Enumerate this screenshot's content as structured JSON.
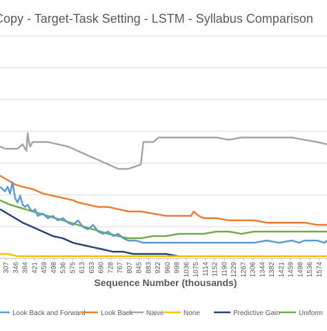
{
  "chart_data": {
    "type": "line",
    "title": "Copy - Target-Task Setting - LSTM - Syllabus Comparison",
    "xlabel": "Sequence Number (thousands)",
    "ylabel": "",
    "x_tick_labels": [
      "307",
      "346",
      "384",
      "421",
      "459",
      "498",
      "536",
      "575",
      "613",
      "653",
      "690",
      "728",
      "767",
      "807",
      "845",
      "883",
      "922",
      "960",
      "998",
      "1036",
      "1075",
      "1114",
      "1152",
      "1190",
      "1229",
      "1267",
      "1306",
      "1344",
      "1382",
      "1421",
      "1459",
      "1498",
      "1536",
      "1574"
    ],
    "x_range": [
      290,
      1590
    ],
    "y_range": [
      0,
      1
    ],
    "grid": "horizontal",
    "legend_position": "bottom",
    "series": [
      {
        "name": "Look Back and Forward",
        "color": "#5b9bd5",
        "x": [
          290,
          300,
          310,
          320,
          330,
          340,
          350,
          360,
          370,
          380,
          390,
          400,
          410,
          420,
          430,
          440,
          460,
          480,
          500,
          520,
          540,
          560,
          580,
          600,
          620,
          640,
          660,
          680,
          700,
          720,
          740,
          760,
          780,
          800,
          830,
          860,
          900,
          950,
          1000,
          1050,
          1100,
          1150,
          1200,
          1250,
          1280,
          1300,
          1350,
          1400,
          1450,
          1480,
          1500,
          1550,
          1580,
          1590
        ],
        "y": [
          0.32,
          0.31,
          0.3,
          0.32,
          0.29,
          0.34,
          0.27,
          0.25,
          0.28,
          0.24,
          0.23,
          0.24,
          0.22,
          0.21,
          0.22,
          0.19,
          0.2,
          0.18,
          0.19,
          0.17,
          0.18,
          0.16,
          0.15,
          0.17,
          0.14,
          0.13,
          0.15,
          0.12,
          0.11,
          0.12,
          0.1,
          0.11,
          0.09,
          0.08,
          0.08,
          0.07,
          0.07,
          0.07,
          0.07,
          0.07,
          0.07,
          0.07,
          0.07,
          0.07,
          0.07,
          0.07,
          0.08,
          0.07,
          0.08,
          0.07,
          0.08,
          0.08,
          0.07,
          0.08
        ]
      },
      {
        "name": "Look Back",
        "color": "#ed7d31",
        "x": [
          290,
          320,
          350,
          380,
          420,
          460,
          500,
          540,
          580,
          600,
          640,
          680,
          720,
          760,
          800,
          850,
          900,
          950,
          1000,
          1050,
          1060,
          1080,
          1100,
          1150,
          1200,
          1250,
          1300,
          1350,
          1400,
          1450,
          1500,
          1550,
          1590
        ],
        "y": [
          0.37,
          0.35,
          0.33,
          0.32,
          0.31,
          0.29,
          0.28,
          0.27,
          0.26,
          0.25,
          0.24,
          0.23,
          0.23,
          0.22,
          0.21,
          0.21,
          0.2,
          0.19,
          0.19,
          0.19,
          0.21,
          0.19,
          0.18,
          0.18,
          0.17,
          0.17,
          0.17,
          0.16,
          0.16,
          0.16,
          0.16,
          0.15,
          0.15
        ]
      },
      {
        "name": "Naive",
        "color": "#a5a5a5",
        "x": [
          290,
          310,
          330,
          360,
          380,
          395,
          400,
          405,
          410,
          420,
          440,
          480,
          520,
          560,
          600,
          640,
          680,
          720,
          760,
          800,
          850,
          860,
          900,
          920,
          930,
          1000,
          1050,
          1100,
          1150,
          1200,
          1250,
          1300,
          1350,
          1400,
          1450,
          1500,
          1550,
          1590
        ],
        "y": [
          0.5,
          0.49,
          0.49,
          0.49,
          0.51,
          0.48,
          0.56,
          0.52,
          0.5,
          0.52,
          0.52,
          0.52,
          0.51,
          0.5,
          0.48,
          0.46,
          0.44,
          0.42,
          0.4,
          0.4,
          0.42,
          0.52,
          0.52,
          0.54,
          0.54,
          0.54,
          0.54,
          0.54,
          0.54,
          0.53,
          0.54,
          0.54,
          0.54,
          0.54,
          0.54,
          0.53,
          0.52,
          0.51
        ]
      },
      {
        "name": "None",
        "color": "#ffc000",
        "x": [
          290,
          320,
          360,
          400,
          440,
          480,
          520,
          560,
          600,
          640,
          700,
          800,
          900,
          1000,
          1100,
          1200,
          1300,
          1400,
          1500,
          1590
        ],
        "y": [
          0.02,
          0.02,
          0.01,
          0.01,
          0.01,
          0.01,
          0.01,
          0.01,
          0.01,
          0.01,
          0.01,
          0.01,
          0.01,
          0.01,
          0.01,
          0.01,
          0.01,
          0.01,
          0.01,
          0.01
        ]
      },
      {
        "name": "Predictive Gain",
        "color": "#264478",
        "x": [
          290,
          320,
          350,
          380,
          420,
          460,
          500,
          540,
          580,
          620,
          660,
          700,
          740,
          780,
          820,
          860,
          900,
          950,
          1000,
          1100,
          1200,
          1300,
          1400,
          1500,
          1590
        ],
        "y": [
          0.22,
          0.2,
          0.18,
          0.16,
          0.14,
          0.12,
          0.1,
          0.09,
          0.07,
          0.06,
          0.05,
          0.04,
          0.03,
          0.03,
          0.02,
          0.02,
          0.02,
          0.02,
          0.01,
          0.01,
          0.01,
          0.01,
          0.01,
          0.01,
          0.01
        ]
      },
      {
        "name": "Uniform",
        "color": "#70ad47",
        "x": [
          290,
          310,
          330,
          360,
          390,
          420,
          450,
          480,
          510,
          540,
          570,
          600,
          630,
          660,
          690,
          720,
          760,
          800,
          850,
          900,
          950,
          1000,
          1050,
          1100,
          1150,
          1200,
          1250,
          1300,
          1350,
          1400,
          1450,
          1500,
          1550,
          1590
        ],
        "y": [
          0.26,
          0.25,
          0.24,
          0.23,
          0.22,
          0.21,
          0.2,
          0.19,
          0.18,
          0.17,
          0.16,
          0.15,
          0.14,
          0.13,
          0.12,
          0.11,
          0.1,
          0.09,
          0.09,
          0.1,
          0.1,
          0.11,
          0.11,
          0.11,
          0.12,
          0.12,
          0.11,
          0.12,
          0.12,
          0.12,
          0.12,
          0.12,
          0.12,
          0.12
        ]
      }
    ]
  }
}
